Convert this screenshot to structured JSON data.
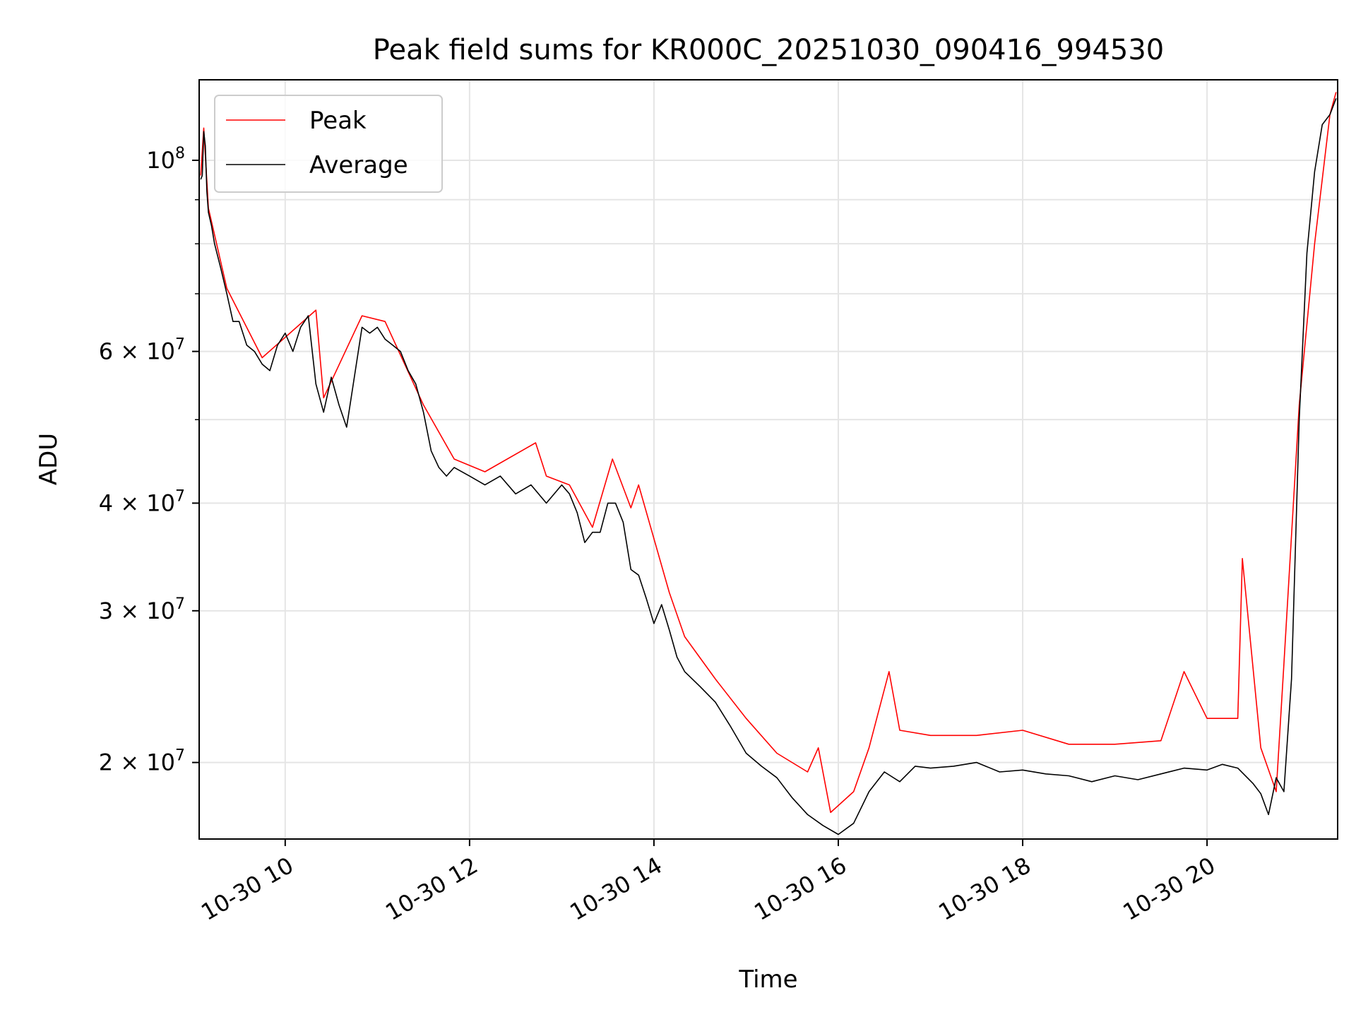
{
  "chart_data": {
    "type": "line",
    "title": "Peak field sums for KR000C_20251030_090416_994530",
    "xlabel": "Time",
    "ylabel": "ADU",
    "scale": {
      "x": "time",
      "y": "log"
    },
    "xlim": [
      "2025-10-30 09:04",
      "2025-10-30 21:25"
    ],
    "ylim": [
      16300000,
      124000000
    ],
    "grid": true,
    "legend_position": "top-left",
    "x_ticks": [
      {
        "value": "2025-10-30 10:00",
        "label": "10-30 10"
      },
      {
        "value": "2025-10-30 12:00",
        "label": "10-30 12"
      },
      {
        "value": "2025-10-30 14:00",
        "label": "10-30 14"
      },
      {
        "value": "2025-10-30 16:00",
        "label": "10-30 16"
      },
      {
        "value": "2025-10-30 18:00",
        "label": "10-30 18"
      },
      {
        "value": "2025-10-30 20:00",
        "label": "10-30 20"
      }
    ],
    "y_major_ticks": [
      {
        "value": 100000000,
        "base": "10",
        "exp": "8"
      },
      {
        "value": 60000000,
        "base": "6 × 10",
        "exp": "7"
      },
      {
        "value": 40000000,
        "base": "4 × 10",
        "exp": "7"
      },
      {
        "value": 30000000,
        "base": "3 × 10",
        "exp": "7"
      },
      {
        "value": 20000000,
        "base": "2 × 10",
        "exp": "7"
      }
    ],
    "y_minor_ticks": [
      90000000,
      80000000,
      70000000,
      50000000
    ],
    "series": [
      {
        "name": "Average",
        "color": "#000000",
        "x": [
          "2025-10-30 09:05",
          "2025-10-30 09:06",
          "2025-10-30 09:07",
          "2025-10-30 09:08",
          "2025-10-30 09:09",
          "2025-10-30 09:10",
          "2025-10-30 09:12",
          "2025-10-30 09:14",
          "2025-10-30 09:18",
          "2025-10-30 09:22",
          "2025-10-30 09:26",
          "2025-10-30 09:30",
          "2025-10-30 09:35",
          "2025-10-30 09:40",
          "2025-10-30 09:45",
          "2025-10-30 09:50",
          "2025-10-30 09:55",
          "2025-10-30 10:00",
          "2025-10-30 10:05",
          "2025-10-30 10:10",
          "2025-10-30 10:15",
          "2025-10-30 10:20",
          "2025-10-30 10:25",
          "2025-10-30 10:30",
          "2025-10-30 10:35",
          "2025-10-30 10:40",
          "2025-10-30 10:45",
          "2025-10-30 10:50",
          "2025-10-30 10:55",
          "2025-10-30 11:00",
          "2025-10-30 11:05",
          "2025-10-30 11:10",
          "2025-10-30 11:15",
          "2025-10-30 11:20",
          "2025-10-30 11:25",
          "2025-10-30 11:30",
          "2025-10-30 11:35",
          "2025-10-30 11:40",
          "2025-10-30 11:45",
          "2025-10-30 11:50",
          "2025-10-30 12:00",
          "2025-10-30 12:10",
          "2025-10-30 12:20",
          "2025-10-30 12:30",
          "2025-10-30 12:40",
          "2025-10-30 12:50",
          "2025-10-30 13:00",
          "2025-10-30 13:05",
          "2025-10-30 13:10",
          "2025-10-30 13:15",
          "2025-10-30 13:20",
          "2025-10-30 13:25",
          "2025-10-30 13:30",
          "2025-10-30 13:35",
          "2025-10-30 13:40",
          "2025-10-30 13:45",
          "2025-10-30 13:50",
          "2025-10-30 13:55",
          "2025-10-30 14:00",
          "2025-10-30 14:05",
          "2025-10-30 14:10",
          "2025-10-30 14:15",
          "2025-10-30 14:20",
          "2025-10-30 14:30",
          "2025-10-30 14:40",
          "2025-10-30 14:50",
          "2025-10-30 15:00",
          "2025-10-30 15:10",
          "2025-10-30 15:20",
          "2025-10-30 15:30",
          "2025-10-30 15:40",
          "2025-10-30 15:50",
          "2025-10-30 16:00",
          "2025-10-30 16:10",
          "2025-10-30 16:20",
          "2025-10-30 16:30",
          "2025-10-30 16:40",
          "2025-10-30 16:50",
          "2025-10-30 17:00",
          "2025-10-30 17:15",
          "2025-10-30 17:30",
          "2025-10-30 17:45",
          "2025-10-30 18:00",
          "2025-10-30 18:15",
          "2025-10-30 18:30",
          "2025-10-30 18:45",
          "2025-10-30 19:00",
          "2025-10-30 19:15",
          "2025-10-30 19:30",
          "2025-10-30 19:45",
          "2025-10-30 20:00",
          "2025-10-30 20:10",
          "2025-10-30 20:20",
          "2025-10-30 20:30",
          "2025-10-30 20:35",
          "2025-10-30 20:40",
          "2025-10-30 20:45",
          "2025-10-30 20:50",
          "2025-10-30 20:55",
          "2025-10-30 21:00",
          "2025-10-30 21:05",
          "2025-10-30 21:10",
          "2025-10-30 21:15",
          "2025-10-30 21:20",
          "2025-10-30 21:24"
        ],
        "y": [
          95000000,
          96000000,
          108000000,
          104000000,
          92000000,
          87000000,
          84000000,
          80000000,
          75000000,
          70000000,
          65000000,
          65000000,
          61000000,
          60000000,
          58000000,
          57000000,
          61000000,
          63000000,
          60000000,
          64000000,
          66000000,
          55000000,
          51000000,
          56000000,
          52000000,
          49000000,
          56000000,
          64000000,
          63000000,
          64000000,
          62000000,
          61000000,
          60000000,
          57000000,
          55000000,
          51000000,
          46000000,
          44000000,
          43000000,
          44000000,
          43000000,
          42000000,
          43000000,
          41000000,
          42000000,
          40000000,
          42000000,
          41000000,
          39000000,
          36000000,
          37000000,
          37000000,
          40000000,
          40000000,
          38000000,
          33500000,
          33000000,
          31000000,
          29000000,
          30500000,
          28500000,
          26500000,
          25500000,
          24500000,
          23500000,
          22000000,
          20500000,
          19800000,
          19200000,
          18200000,
          17400000,
          16900000,
          16500000,
          17000000,
          18500000,
          19500000,
          19000000,
          19800000,
          19700000,
          19800000,
          20000000,
          19500000,
          19600000,
          19400000,
          19300000,
          19000000,
          19300000,
          19100000,
          19400000,
          19700000,
          19600000,
          19900000,
          19700000,
          18900000,
          18400000,
          17400000,
          19200000,
          18500000,
          25000000,
          50000000,
          78000000,
          97000000,
          110000000,
          113000000,
          118000000
        ]
      },
      {
        "name": "Peak",
        "color": "#ff0000",
        "x": [
          "2025-10-30 09:05",
          "2025-10-30 09:07",
          "2025-10-30 09:10",
          "2025-10-30 09:22",
          "2025-10-30 09:45",
          "2025-10-30 10:20",
          "2025-10-30 10:25",
          "2025-10-30 10:50",
          "2025-10-30 11:05",
          "2025-10-30 11:30",
          "2025-10-30 11:50",
          "2025-10-30 12:10",
          "2025-10-30 12:43",
          "2025-10-30 12:50",
          "2025-10-30 13:05",
          "2025-10-30 13:20",
          "2025-10-30 13:33",
          "2025-10-30 13:45",
          "2025-10-30 13:50",
          "2025-10-30 14:10",
          "2025-10-30 14:20",
          "2025-10-30 14:40",
          "2025-10-30 15:00",
          "2025-10-30 15:20",
          "2025-10-30 15:40",
          "2025-10-30 15:47",
          "2025-10-30 15:55",
          "2025-10-30 16:10",
          "2025-10-30 16:20",
          "2025-10-30 16:33",
          "2025-10-30 16:40",
          "2025-10-30 17:00",
          "2025-10-30 17:30",
          "2025-10-30 18:00",
          "2025-10-30 18:30",
          "2025-10-30 19:00",
          "2025-10-30 19:30",
          "2025-10-30 19:45",
          "2025-10-30 20:00",
          "2025-10-30 20:20",
          "2025-10-30 20:23",
          "2025-10-30 20:35",
          "2025-10-30 20:45",
          "2025-10-30 20:50",
          "2025-10-30 21:00",
          "2025-10-30 21:10",
          "2025-10-30 21:20",
          "2025-10-30 21:24"
        ],
        "y": [
          96000000,
          109000000,
          88000000,
          71000000,
          59000000,
          67000000,
          53000000,
          66000000,
          65000000,
          52000000,
          45000000,
          43500000,
          47000000,
          43000000,
          42000000,
          37500000,
          45000000,
          39500000,
          42000000,
          31500000,
          28000000,
          25000000,
          22500000,
          20500000,
          19500000,
          20800000,
          17500000,
          18500000,
          20800000,
          25500000,
          21800000,
          21500000,
          21500000,
          21800000,
          21000000,
          21000000,
          21200000,
          25500000,
          22500000,
          22500000,
          34500000,
          20800000,
          18500000,
          26000000,
          52000000,
          80000000,
          113000000,
          120000000
        ]
      }
    ]
  }
}
